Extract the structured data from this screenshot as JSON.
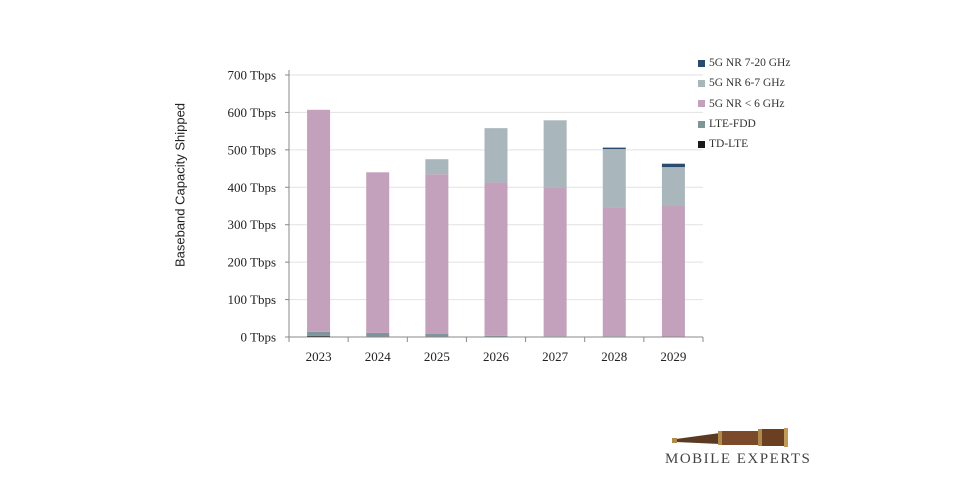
{
  "chart_data": {
    "type": "bar",
    "stacked": true,
    "title": "",
    "xlabel": "",
    "ylabel": "Baseband Capacity Shipped",
    "ylim": [
      0,
      700
    ],
    "yticks": [
      0,
      100,
      200,
      300,
      400,
      500,
      600,
      700
    ],
    "ytick_labels": [
      "0 Tbps",
      "100 Tbps",
      "200 Tbps",
      "300 Tbps",
      "400 Tbps",
      "500 Tbps",
      "600 Tbps",
      "700 Tbps"
    ],
    "grid": true,
    "legend_position": "top-right",
    "categories": [
      "2023",
      "2024",
      "2025",
      "2026",
      "2027",
      "2028",
      "2029"
    ],
    "series": [
      {
        "name": "TD-LTE",
        "color": "#1a1a1a",
        "values": [
          3,
          1,
          0,
          0,
          0,
          0,
          0
        ]
      },
      {
        "name": "LTE-FDD",
        "color": "#7f959c",
        "values": [
          11,
          10,
          8,
          3,
          2,
          2,
          1
        ]
      },
      {
        "name": "5G NR < 6 GHz",
        "color": "#c3a0bb",
        "values": [
          593,
          429,
          427,
          410,
          398,
          345,
          349
        ]
      },
      {
        "name": "5G NR 6-7 GHz",
        "color": "#a9b6bb",
        "values": [
          0,
          0,
          40,
          145,
          179,
          155,
          104
        ]
      },
      {
        "name": "5G NR 7-20 GHz",
        "color": "#2b4a6f",
        "values": [
          0,
          0,
          0,
          0,
          0,
          4,
          9
        ]
      }
    ]
  },
  "logo": {
    "text": "MOBILE EXPERTS"
  }
}
